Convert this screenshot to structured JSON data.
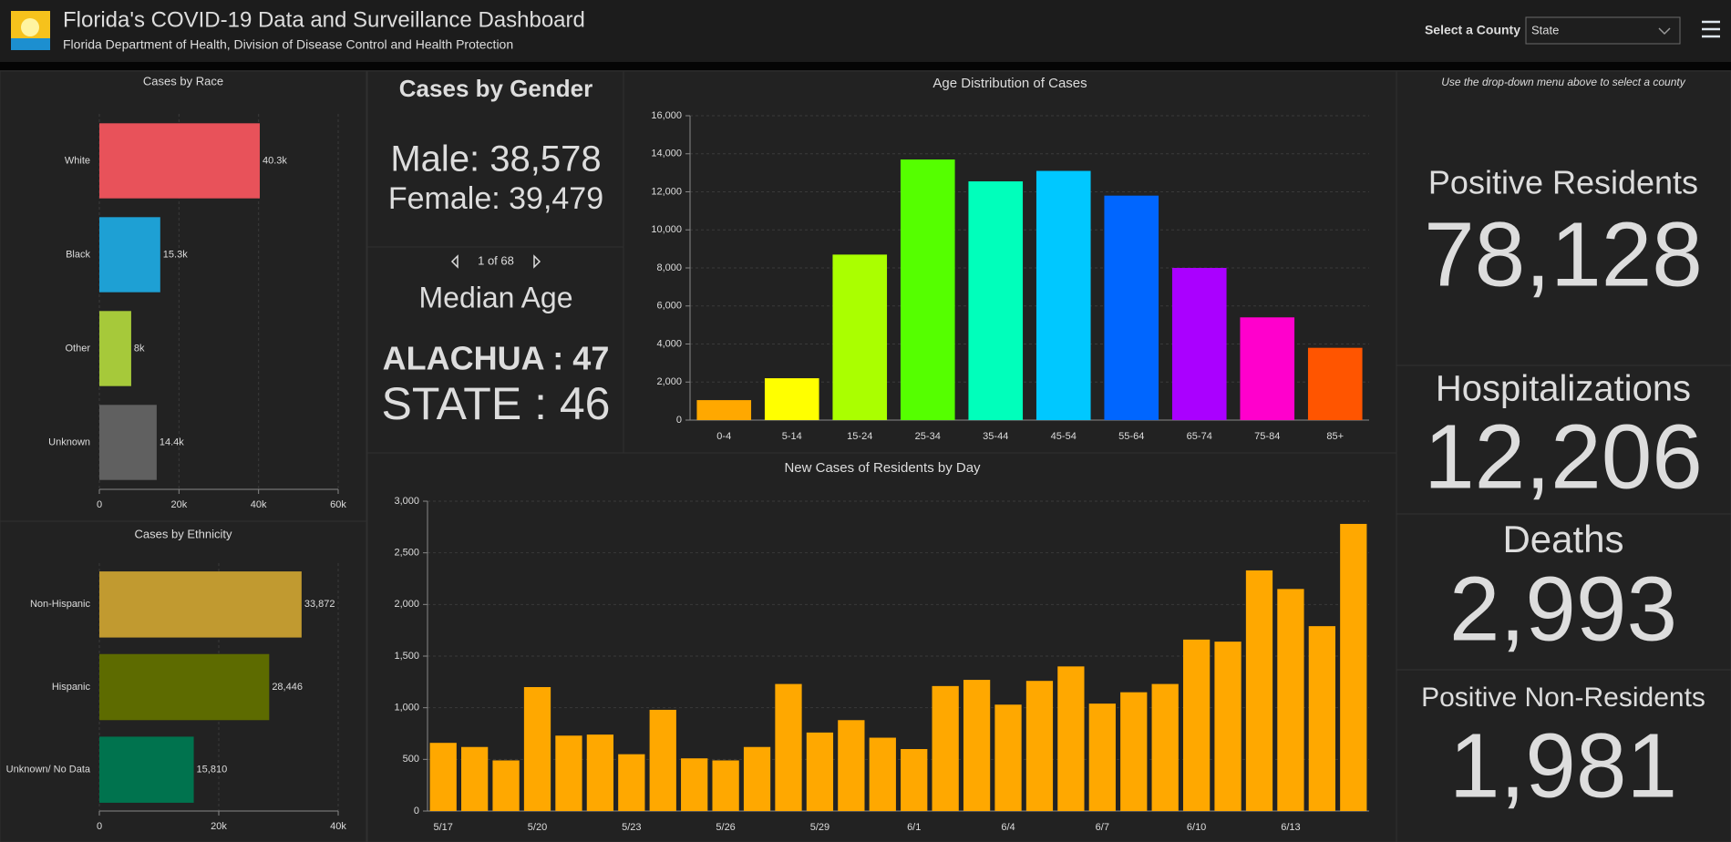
{
  "header": {
    "title": "Florida's COVID-19 Data and Surveillance Dashboard",
    "subtitle": "Florida Department of Health, Division of Disease Control and Health Protection",
    "select_label": "Select a County",
    "select_value": "State"
  },
  "gender": {
    "title": "Cases by Gender",
    "male": "Male: 38,578",
    "female": "Female: 39,479"
  },
  "median_age": {
    "pager": "1 of 68",
    "title": "Median Age",
    "county": "ALACHUA : 47",
    "state": "STATE : 46"
  },
  "summary": {
    "note": "Use the drop-down menu above to select a county",
    "items": [
      {
        "label": "Positive Residents",
        "value": "78,128",
        "color": "#fbf56d"
      },
      {
        "label": "Hospitalizations",
        "value": "12,206",
        "color": "#e4501a"
      },
      {
        "label": "Deaths",
        "value": "2,993",
        "color": "#9a9a9a"
      },
      {
        "label": "Positive Non-Residents",
        "value": "1,981",
        "color": "#1290c2"
      }
    ]
  },
  "chart_data": [
    {
      "type": "bar",
      "orientation": "horizontal",
      "title": "Cases by Race",
      "categories": [
        "White",
        "Black",
        "Other",
        "Unknown"
      ],
      "values": [
        40300,
        15300,
        8000,
        14400
      ],
      "value_labels": [
        "40.3k",
        "15.3k",
        "8k",
        "14.4k"
      ],
      "colors": [
        "#e8525a",
        "#1ea0d4",
        "#a6c93a",
        "#606060"
      ],
      "xlim": [
        0,
        60000
      ],
      "xticks": [
        0,
        {
          "value": 20000,
          "label": "20k"
        },
        {
          "value": 40000,
          "label": "40k"
        },
        {
          "value": 60000,
          "label": "60k"
        }
      ],
      "grid": true
    },
    {
      "type": "bar",
      "orientation": "horizontal",
      "title": "Cases by Ethnicity",
      "categories": [
        "Non-Hispanic",
        "Hispanic",
        "Unknown/ No Data"
      ],
      "values": [
        33872,
        28446,
        15810
      ],
      "value_labels": [
        "33,872",
        "28,446",
        "15,810"
      ],
      "colors": [
        "#c19a30",
        "#5d6b00",
        "#00734e"
      ],
      "xlim": [
        0,
        40000
      ],
      "xticks": [
        0,
        {
          "value": 20000,
          "label": "20k"
        },
        {
          "value": 40000,
          "label": "40k"
        }
      ],
      "grid": true
    },
    {
      "type": "bar",
      "title": "Age Distribution of Cases",
      "categories": [
        "0-4",
        "5-14",
        "15-24",
        "25-34",
        "35-44",
        "45-54",
        "55-64",
        "65-74",
        "75-84",
        "85+"
      ],
      "values": [
        1050,
        2200,
        8700,
        13700,
        12550,
        13100,
        11800,
        8000,
        5400,
        3800
      ],
      "colors": [
        "#ffa800",
        "#ffff00",
        "#aaff00",
        "#55ff00",
        "#00ffbb",
        "#00c8ff",
        "#0066ff",
        "#aa00ff",
        "#ff00cc",
        "#ff5500"
      ],
      "ylim": [
        0,
        16000
      ],
      "yticks": [
        0,
        {
          "value": 2000,
          "label": "2,000"
        },
        {
          "value": 4000,
          "label": "4,000"
        },
        {
          "value": 6000,
          "label": "6,000"
        },
        {
          "value": 8000,
          "label": "8,000"
        },
        {
          "value": 10000,
          "label": "10,000"
        },
        {
          "value": 12000,
          "label": "12,000"
        },
        {
          "value": 14000,
          "label": "14,000"
        },
        {
          "value": 16000,
          "label": "16,000"
        }
      ],
      "grid": true
    },
    {
      "type": "bar",
      "title": "New Cases of Residents by Day",
      "categories": [
        "5/17",
        null,
        null,
        "5/20",
        null,
        null,
        "5/23",
        null,
        null,
        "5/26",
        null,
        null,
        "5/29",
        null,
        null,
        "6/1",
        null,
        null,
        "6/4",
        null,
        null,
        "6/7",
        null,
        null,
        "6/10",
        null,
        null,
        "6/13",
        null,
        null
      ],
      "values": [
        660,
        620,
        490,
        1200,
        730,
        740,
        550,
        980,
        510,
        490,
        620,
        1230,
        760,
        880,
        710,
        600,
        1210,
        1270,
        1030,
        1260,
        1400,
        1040,
        1150,
        1230,
        1660,
        1640,
        2330,
        2150,
        1790,
        2780
      ],
      "color": "#ffa800",
      "ylim": [
        0,
        3000
      ],
      "yticks": [
        0,
        500,
        {
          "value": 1000,
          "label": "1,000"
        },
        {
          "value": 1500,
          "label": "1,500"
        },
        {
          "value": 2000,
          "label": "2,000"
        },
        {
          "value": 2500,
          "label": "2,500"
        },
        {
          "value": 3000,
          "label": "3,000"
        }
      ],
      "grid": true
    }
  ]
}
